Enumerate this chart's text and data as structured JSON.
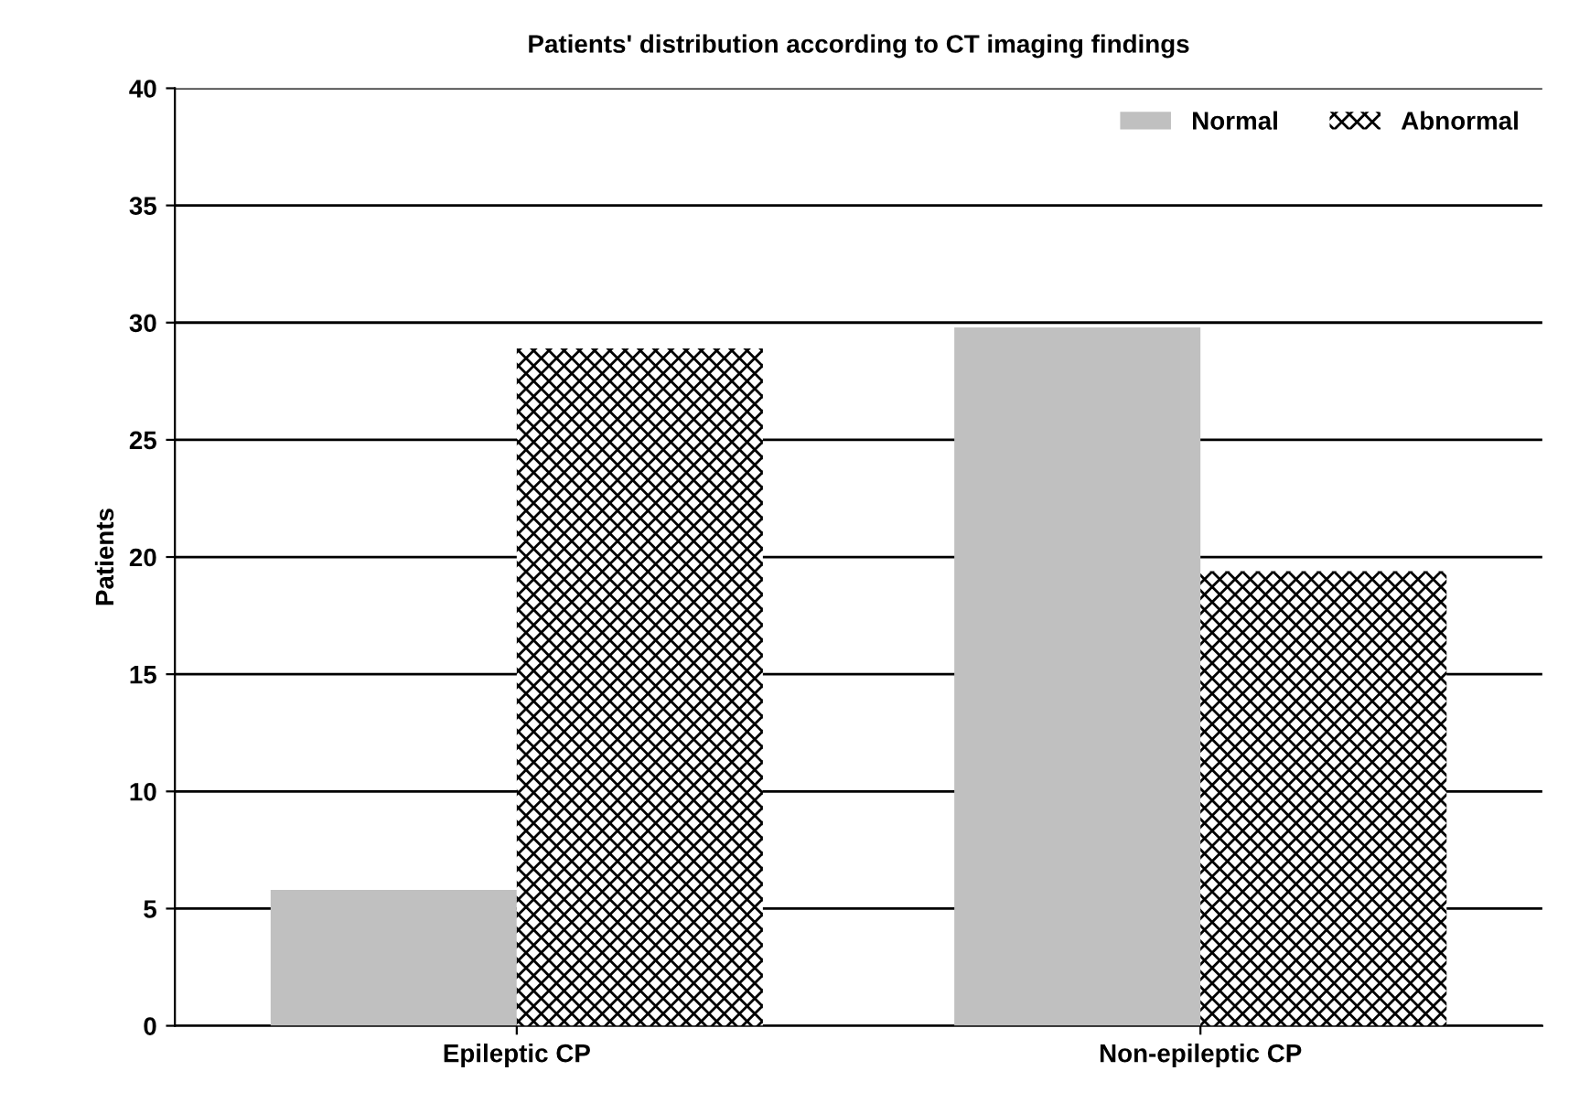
{
  "chart_data": {
    "type": "bar",
    "title": "Patients' distribution according to CT imaging findings",
    "ylabel": "Patients",
    "categories": [
      "Epileptic CP",
      "Non-epileptic CP"
    ],
    "series": [
      {
        "name": "Normal",
        "color": "#c0c0c0",
        "values": [
          5.8,
          29.8
        ]
      },
      {
        "name": "Abnormal",
        "color": "#000000",
        "values": [
          28.9,
          19.4
        ]
      }
    ],
    "ylim": [
      0,
      40
    ],
    "yticks": [
      0,
      5,
      10,
      15,
      20,
      25,
      30,
      35,
      40
    ],
    "grid": "y",
    "legend": "top right"
  }
}
